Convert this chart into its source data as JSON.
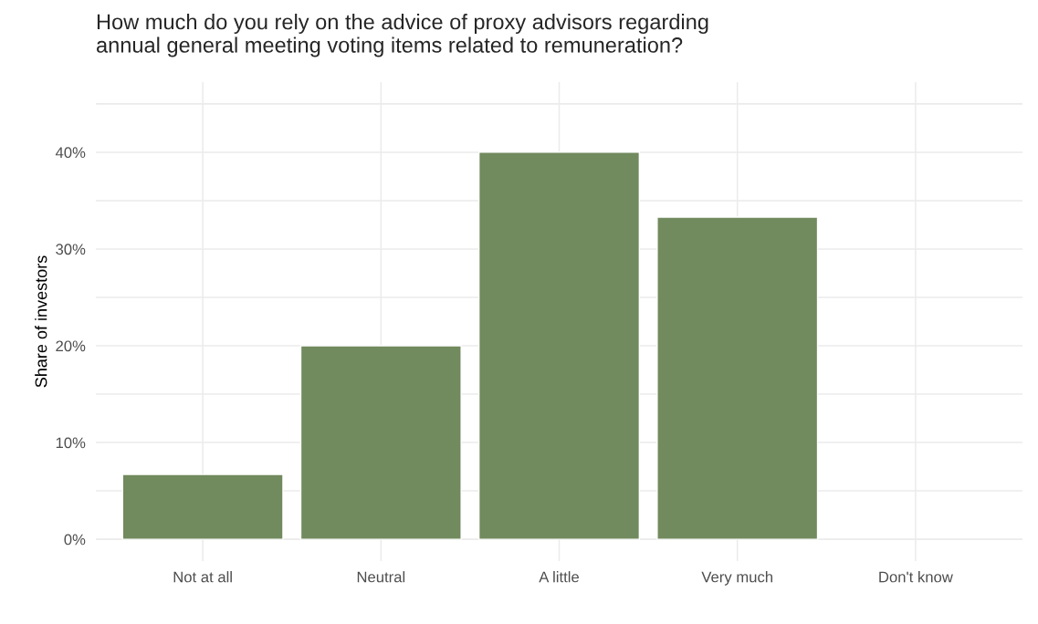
{
  "chart_data": {
    "type": "bar",
    "title": "How much do you rely on the advice of proxy advisors regarding\nannual general meeting voting items related to remuneration?",
    "ylabel": "Share of investors",
    "categories": [
      "Not at all",
      "Neutral",
      "A little",
      "Very much",
      "Don't know"
    ],
    "values": [
      6.7,
      20,
      40,
      33.3,
      null
    ],
    "color": "#718a5e",
    "ylim": [
      -2.25,
      47.25
    ],
    "yticks": [
      {
        "value": 0,
        "label": "0%"
      },
      {
        "value": 5,
        "label": null
      },
      {
        "value": 10,
        "label": "10%"
      },
      {
        "value": 15,
        "label": null
      },
      {
        "value": 20,
        "label": "20%"
      },
      {
        "value": 25,
        "label": null
      },
      {
        "value": 30,
        "label": "30%"
      },
      {
        "value": 35,
        "label": null
      },
      {
        "value": 40,
        "label": "40%"
      },
      {
        "value": 45,
        "label": null
      }
    ],
    "grid": true
  }
}
